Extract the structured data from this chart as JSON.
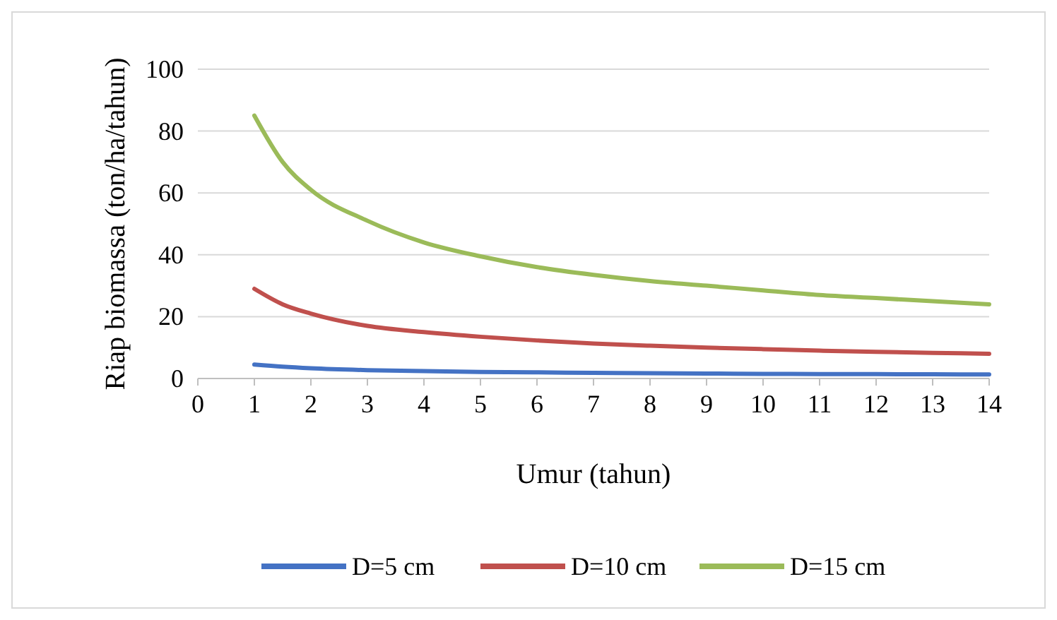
{
  "chart_data": {
    "type": "line",
    "xlabel": "Umur (tahun)",
    "ylabel": "Riap biomassa (ton/ha/tahun)",
    "xlim": [
      0,
      14
    ],
    "xticks": [
      0,
      1,
      2,
      3,
      4,
      5,
      6,
      7,
      8,
      9,
      10,
      11,
      12,
      13,
      14
    ],
    "ylim": [
      0,
      100
    ],
    "yticks": [
      0,
      20,
      40,
      60,
      80,
      100
    ],
    "grid": "y",
    "legend": "bottom",
    "marker": "none",
    "line_style": "solid",
    "x": [
      1,
      1.5,
      2,
      3,
      4,
      5,
      6,
      7,
      8,
      9,
      10,
      11,
      12,
      13,
      14
    ],
    "series": [
      {
        "name": "D=5 cm",
        "color": "#4472c4",
        "values": [
          4.5,
          3.8,
          3.3,
          2.7,
          2.4,
          2.1,
          2,
          1.8,
          1.7,
          1.6,
          1.5,
          1.45,
          1.4,
          1.35,
          1.3
        ]
      },
      {
        "name": "D=10 cm",
        "color": "#c0504d",
        "values": [
          29,
          24,
          21,
          17,
          15,
          13.5,
          12.3,
          11.3,
          10.6,
          10,
          9.5,
          9,
          8.6,
          8.3,
          8
        ]
      },
      {
        "name": "D=15 cm",
        "color": "#9bbb59",
        "values": [
          85,
          70,
          61,
          51,
          44,
          39.5,
          36,
          33.5,
          31.5,
          30,
          28.5,
          27,
          26,
          25,
          24
        ]
      }
    ]
  }
}
